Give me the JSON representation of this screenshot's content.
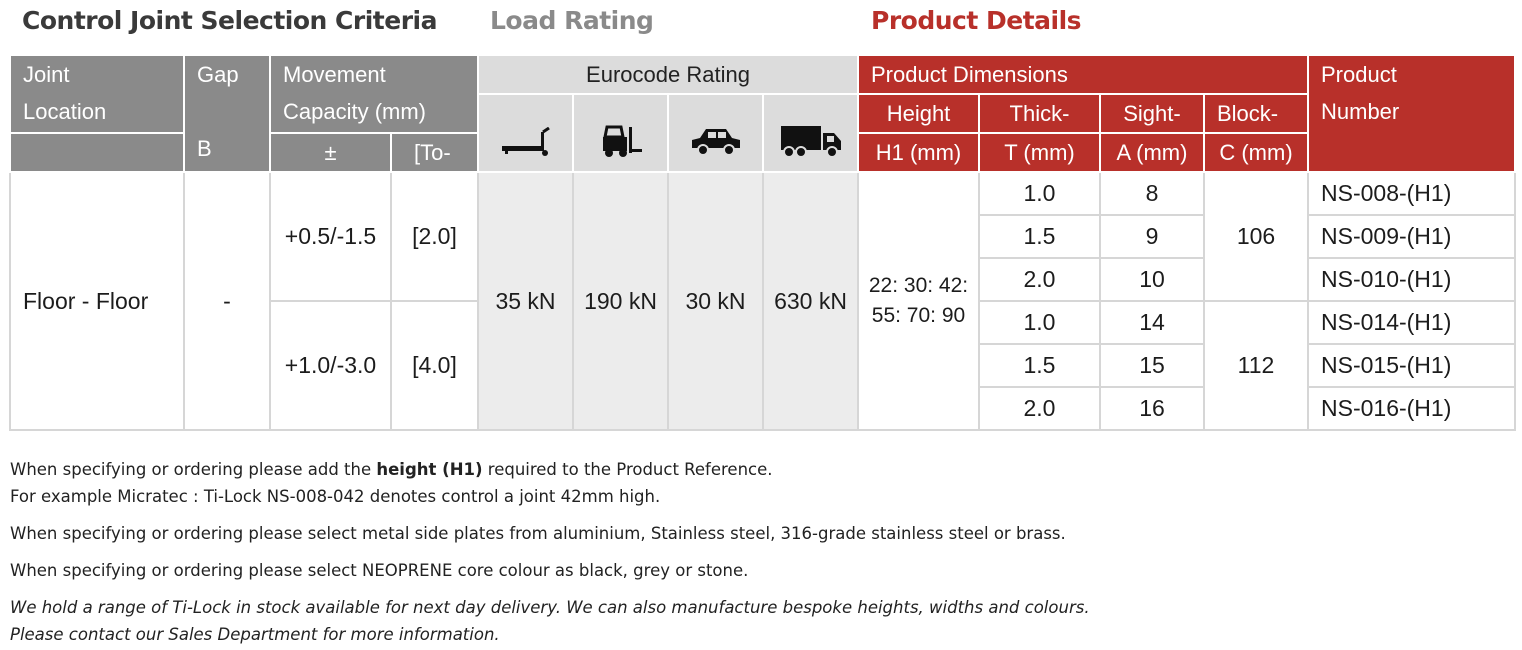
{
  "sections": {
    "criteria": "Control Joint Selection Criteria",
    "load": "Load Rating",
    "product": "Product Details"
  },
  "headers": {
    "joint_location": [
      "Joint",
      "Location"
    ],
    "gap": [
      "Gap",
      "B"
    ],
    "movement": [
      "Movement",
      "Capacity (mm)"
    ],
    "movement_sub": [
      "±",
      "[To-"
    ],
    "eurocode": "Eurocode Rating",
    "load_icons": [
      "pallet-truck-icon",
      "forklift-icon",
      "car-icon",
      "lorry-icon"
    ],
    "product_dimensions": "Product Dimensions",
    "height": [
      "Height",
      "H1 (mm)"
    ],
    "thick": [
      "Thick-",
      "T (mm)"
    ],
    "sight": [
      "Sight-",
      "A (mm)"
    ],
    "block": [
      "Block-",
      "C (mm)"
    ],
    "product_number": [
      "Product",
      "Number"
    ]
  },
  "body": {
    "joint_location": "Floor - Floor",
    "gap": "-",
    "movement": [
      {
        "pm": "+0.5/-1.5",
        "to": "[2.0]"
      },
      {
        "pm": "+1.0/-3.0",
        "to": "[4.0]"
      }
    ],
    "load_ratings": [
      "35 kN",
      "190 kN",
      "30 kN",
      "630 kN"
    ],
    "heights": [
      "22: 30: 42:",
      "55: 70: 90"
    ],
    "block_values": [
      "106",
      "112"
    ],
    "rows": [
      {
        "thick": "1.0",
        "sight": "8",
        "product": "NS-008-(H1)"
      },
      {
        "thick": "1.5",
        "sight": "9",
        "product": "NS-009-(H1)"
      },
      {
        "thick": "2.0",
        "sight": "10",
        "product": "NS-010-(H1)"
      },
      {
        "thick": "1.0",
        "sight": "14",
        "product": "NS-014-(H1)"
      },
      {
        "thick": "1.5",
        "sight": "15",
        "product": "NS-015-(H1)"
      },
      {
        "thick": "2.0",
        "sight": "16",
        "product": "NS-016-(H1)"
      }
    ]
  },
  "notes": {
    "line1_pre": "When specifying or ordering please add the ",
    "line1_bold": "height (H1)",
    "line1_post": " required to the Product Reference.",
    "line2": "For example Micratec : Ti-Lock NS-008-042 denotes control a joint 42mm high.",
    "line3": "When specifying or ordering please select metal side plates from aluminium, Stainless steel, 316-grade stainless steel or brass.",
    "line4": "When specifying or ordering please select NEOPRENE core colour as black, grey or stone.",
    "line5": "We hold a range of Ti-Lock in stock available for next day delivery. We can also manufacture bespoke heights, widths and colours.",
    "line6": "Please contact our Sales Department for more information."
  },
  "colors": {
    "grey_header": "#8a8a8a",
    "red_header": "#b8302a",
    "load_header": "#dcdcdc",
    "load_body": "#ececec"
  }
}
